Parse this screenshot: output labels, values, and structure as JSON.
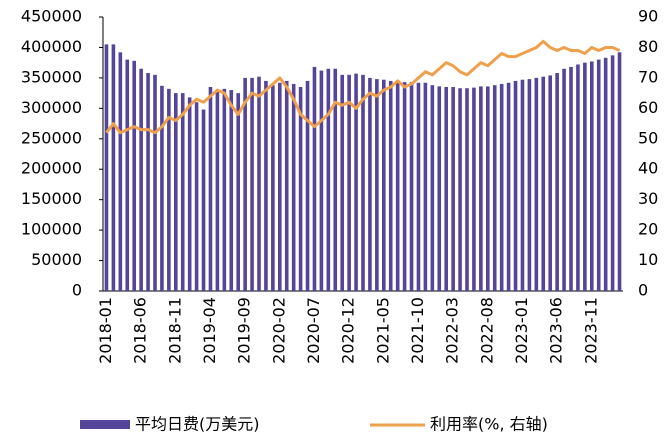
{
  "chart_data": {
    "type": "bar_line",
    "categories": [
      "2018-01",
      null,
      null,
      null,
      null,
      "2018-06",
      null,
      null,
      null,
      null,
      "2018-11",
      null,
      null,
      null,
      null,
      "2019-04",
      null,
      null,
      null,
      null,
      "2019-09",
      null,
      null,
      null,
      null,
      "2020-02",
      null,
      null,
      null,
      null,
      "2020-07",
      null,
      null,
      null,
      null,
      "2020-12",
      null,
      null,
      null,
      null,
      "2021-05",
      null,
      null,
      null,
      null,
      "2021-10",
      null,
      null,
      null,
      null,
      "2022-03",
      null,
      null,
      null,
      null,
      "2022-08",
      null,
      null,
      null,
      null,
      "2023-01",
      null,
      null,
      null,
      null,
      "2023-06",
      null,
      null,
      null,
      null,
      "2023-11",
      null,
      null,
      null,
      null
    ],
    "series": [
      {
        "name": "平均日费(万美元)",
        "color": "#54449a",
        "type": "bar",
        "values": [
          405000,
          405000,
          392000,
          380000,
          378000,
          365000,
          358000,
          355000,
          337000,
          332000,
          325000,
          325000,
          318000,
          310000,
          298000,
          335000,
          330000,
          332000,
          330000,
          325000,
          350000,
          350000,
          352000,
          345000,
          338000,
          342000,
          345000,
          340000,
          335000,
          345000,
          368000,
          362000,
          365000,
          365000,
          355000,
          355000,
          357000,
          355000,
          350000,
          348000,
          347000,
          345000,
          345000,
          343000,
          343000,
          342000,
          342000,
          338000,
          336000,
          335000,
          335000,
          333000,
          333000,
          334000,
          336000,
          336000,
          338000,
          340000,
          342000,
          345000,
          347000,
          348000,
          350000,
          352000,
          354000,
          358000,
          365000,
          368000,
          372000,
          375000,
          377000,
          380000,
          383000,
          387000,
          392000
        ]
      },
      {
        "name": "利用率(%, 右轴)",
        "color": "#f0a04c",
        "type": "line",
        "axis": "y2",
        "values": [
          52,
          55,
          52,
          53,
          54,
          53,
          53,
          52,
          54,
          57,
          56,
          58,
          61,
          63,
          62,
          64,
          66,
          65,
          61,
          58,
          62,
          65,
          64,
          66,
          68,
          70,
          67,
          63,
          58,
          56,
          54,
          56,
          58,
          62,
          61,
          62,
          60,
          63,
          65,
          64,
          66,
          67,
          69,
          67,
          68,
          70,
          72,
          71,
          73,
          75,
          74,
          72,
          71,
          73,
          75,
          74,
          76,
          78,
          77,
          77,
          78,
          79,
          80,
          82,
          80,
          79,
          80,
          79,
          79,
          78,
          80,
          79,
          80,
          80,
          79
        ]
      }
    ],
    "ylim": [
      0,
      450000
    ],
    "yticks": [
      0,
      50000,
      100000,
      150000,
      200000,
      250000,
      300000,
      350000,
      400000,
      450000
    ],
    "y2lim": [
      0,
      90
    ],
    "y2ticks": [
      0,
      10,
      20,
      30,
      40,
      50,
      60,
      70,
      80,
      90
    ]
  }
}
